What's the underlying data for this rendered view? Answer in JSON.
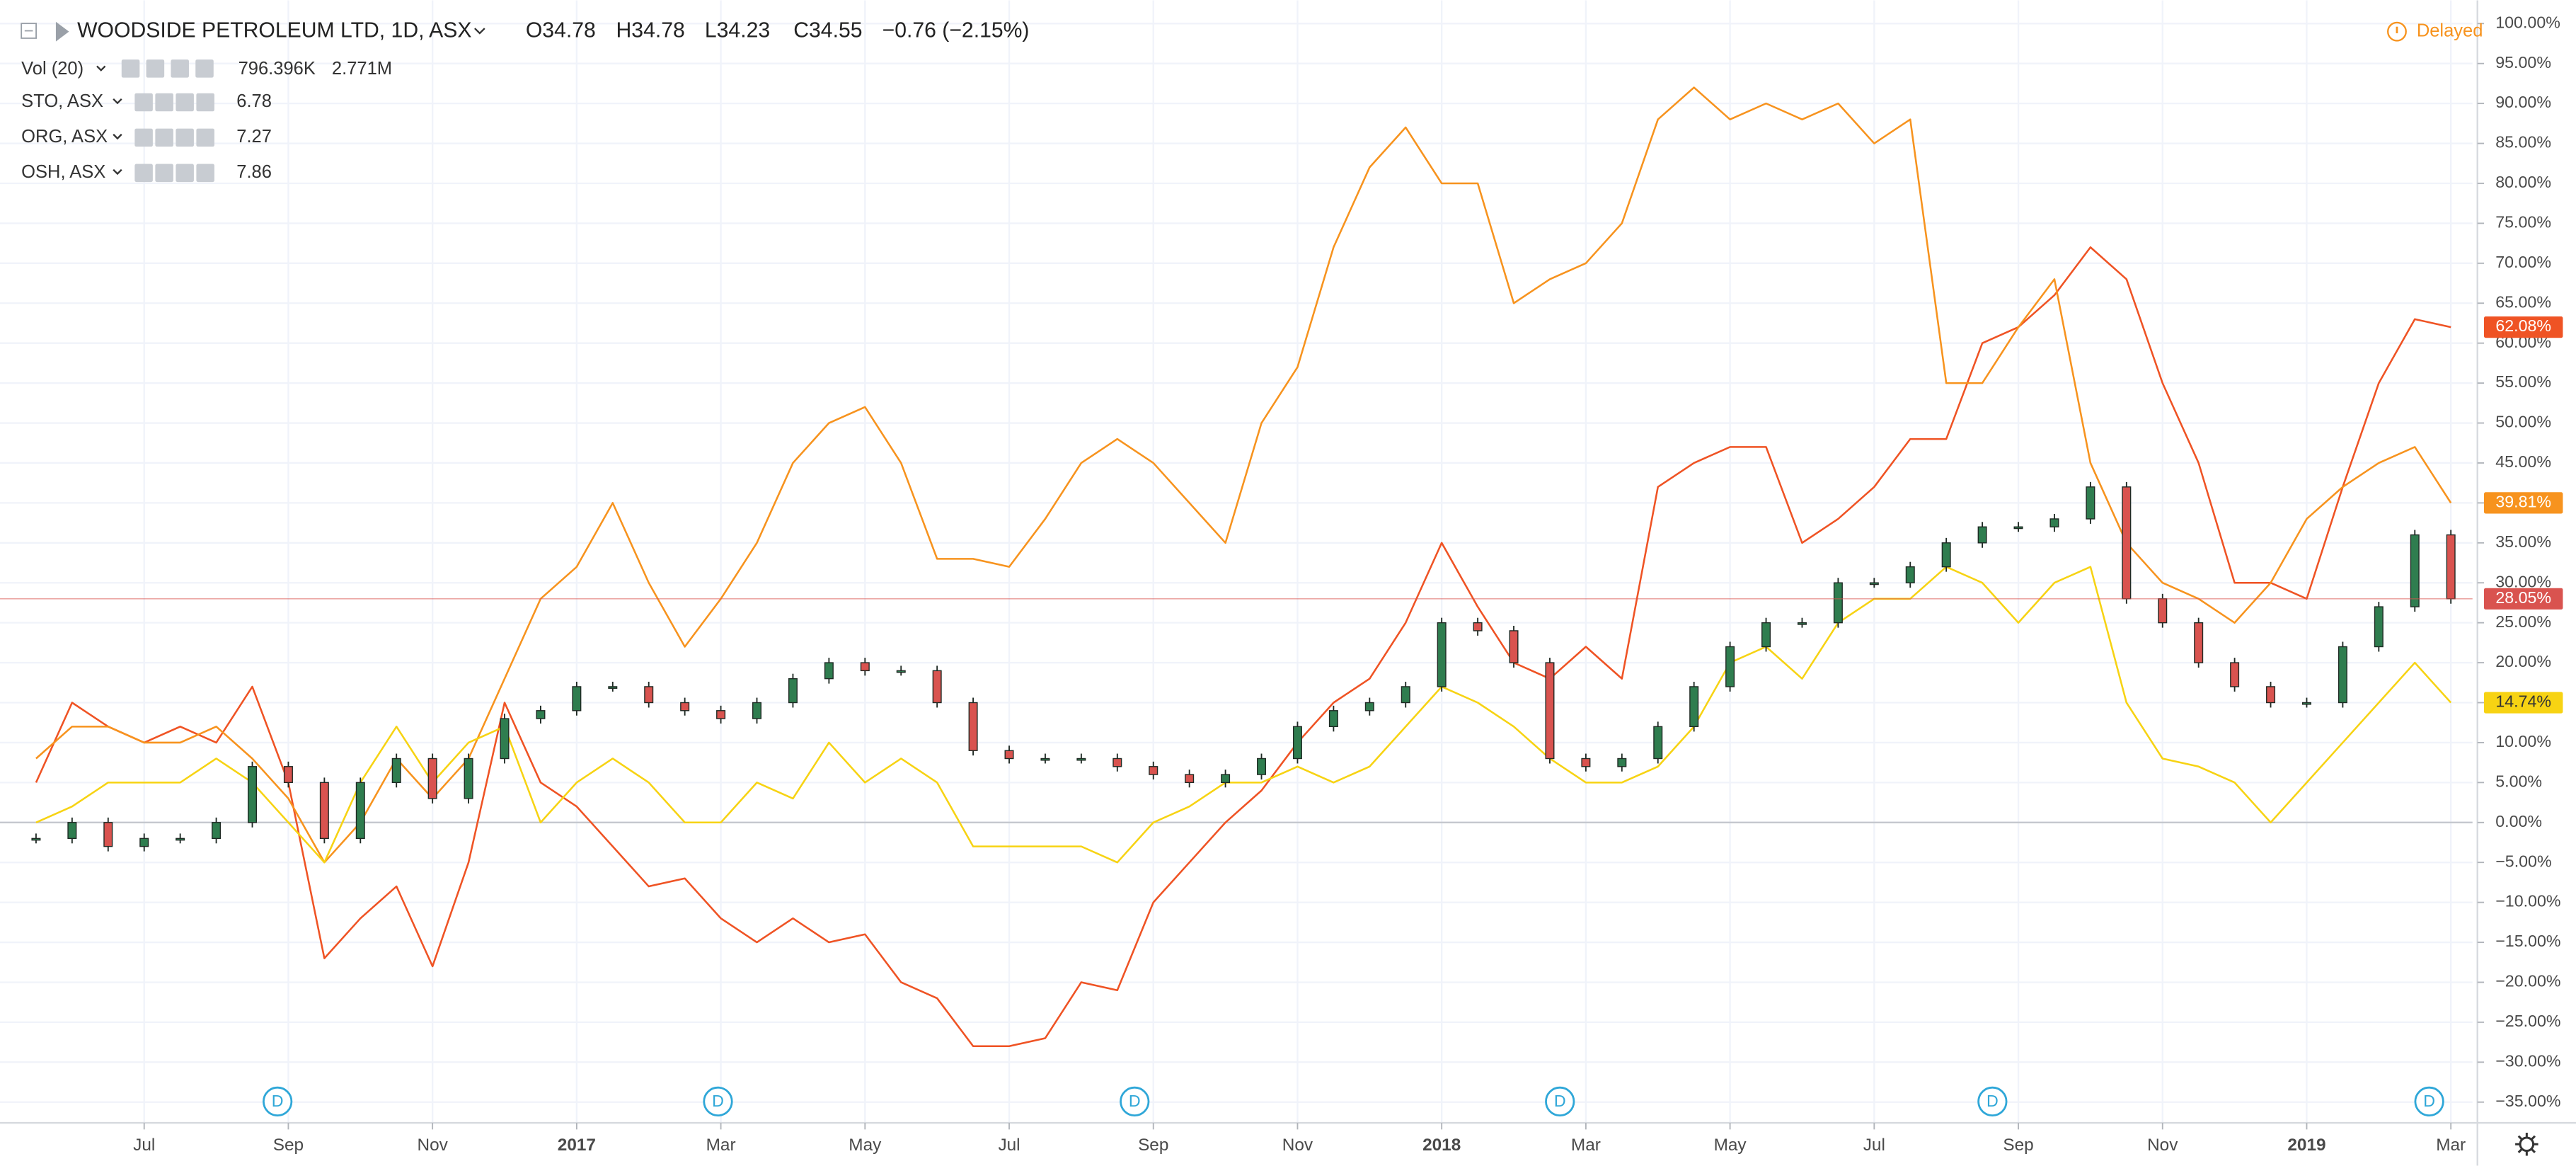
{
  "chart_data": {
    "type": "line",
    "title": "WOODSIDE PETROLEUM LTD, 1D, ASX",
    "ohlc": [
      "O34.78",
      "H34.78",
      "L34.23",
      "C34.55"
    ],
    "change": "−0.76 (−2.15%)",
    "status": "Delayed",
    "volume_legend": {
      "name": "Vol (20)",
      "values": [
        "796.396K",
        "2.771M"
      ]
    },
    "xlim": [
      4,
      38.3
    ],
    "ylim": [
      -37.6,
      102.9
    ],
    "baseline": 0,
    "grid": true,
    "up_color": "#2f7d4f",
    "down_color": "#d9534f",
    "xticks": [
      {
        "value": 6,
        "label": "Jul"
      },
      {
        "value": 8,
        "label": "Sep"
      },
      {
        "value": 10,
        "label": "Nov"
      },
      {
        "value": 12,
        "label": "2017"
      },
      {
        "value": 14,
        "label": "Mar"
      },
      {
        "value": 16,
        "label": "May"
      },
      {
        "value": 18,
        "label": "Jul"
      },
      {
        "value": 20,
        "label": "Sep"
      },
      {
        "value": 22,
        "label": "Nov"
      },
      {
        "value": 24,
        "label": "2018"
      },
      {
        "value": 26,
        "label": "Mar"
      },
      {
        "value": 28,
        "label": "May"
      },
      {
        "value": 30,
        "label": "Jul"
      },
      {
        "value": 32,
        "label": "Sep"
      },
      {
        "value": 34,
        "label": "Nov"
      },
      {
        "value": 36,
        "label": "2019"
      },
      {
        "value": 38,
        "label": "Mar"
      }
    ],
    "yticks": [
      {
        "value": 100,
        "label": "100.00%"
      },
      {
        "value": 95,
        "label": "95.00%"
      },
      {
        "value": 90,
        "label": "90.00%"
      },
      {
        "value": 85,
        "label": "85.00%"
      },
      {
        "value": 80,
        "label": "80.00%"
      },
      {
        "value": 75,
        "label": "75.00%"
      },
      {
        "value": 70,
        "label": "70.00%"
      },
      {
        "value": 65,
        "label": "65.00%"
      },
      {
        "value": 60,
        "label": "60.00%"
      },
      {
        "value": 55,
        "label": "55.00%"
      },
      {
        "value": 50,
        "label": "50.00%"
      },
      {
        "value": 45,
        "label": "45.00%"
      },
      {
        "value": 40,
        "label": "40.00%"
      },
      {
        "value": 35,
        "label": "35.00%"
      },
      {
        "value": 30,
        "label": "30.00%"
      },
      {
        "value": 25,
        "label": "25.00%"
      },
      {
        "value": 20,
        "label": "20.00%"
      },
      {
        "value": 15,
        "label": "15.00%"
      },
      {
        "value": 10,
        "label": "10.00%"
      },
      {
        "value": 5,
        "label": "5.00%"
      },
      {
        "value": 0,
        "label": "0.00%"
      },
      {
        "value": -5,
        "label": "−5.00%"
      },
      {
        "value": -10,
        "label": "−10.00%"
      },
      {
        "value": -15,
        "label": "−15.00%"
      },
      {
        "value": -20,
        "label": "−20.00%"
      },
      {
        "value": -25,
        "label": "−25.00%"
      },
      {
        "value": -30,
        "label": "−30.00%"
      },
      {
        "value": -35,
        "label": "−35.00%"
      }
    ],
    "x": [
      4.5,
      5,
      5.5,
      6,
      6.5,
      7,
      7.5,
      8,
      8.5,
      9,
      9.5,
      10,
      10.5,
      11,
      11.5,
      12,
      12.5,
      13,
      13.5,
      14,
      14.5,
      15,
      15.5,
      16,
      16.5,
      17,
      17.5,
      18,
      18.5,
      19,
      19.5,
      20,
      20.5,
      21,
      21.5,
      22,
      22.5,
      23,
      23.5,
      24,
      24.5,
      25,
      25.5,
      26,
      26.5,
      27,
      27.5,
      28,
      28.5,
      29,
      29.5,
      30,
      30.5,
      31,
      31.5,
      32,
      32.5,
      33,
      33.5,
      34,
      34.5,
      35,
      35.5,
      36,
      36.5,
      37,
      37.5,
      38
    ],
    "series": [
      {
        "name": "STO, ASX",
        "legend_value": "6.78",
        "color": "#ef5324",
        "last_label": "62.08%",
        "values": [
          5,
          15,
          12,
          10,
          12,
          10,
          17,
          5,
          -17,
          -12,
          -8,
          -18,
          -5,
          15,
          5,
          2,
          -3,
          -8,
          -7,
          -12,
          -15,
          -12,
          -15,
          -14,
          -20,
          -22,
          -28,
          -28,
          -27,
          -20,
          -21,
          -10,
          -5,
          0,
          4,
          10,
          15,
          18,
          25,
          35,
          27,
          20,
          18,
          22,
          18,
          42,
          45,
          47,
          47,
          35,
          38,
          42,
          48,
          48,
          60,
          62,
          66,
          72,
          68,
          55,
          45,
          30,
          30,
          28,
          42,
          55,
          63,
          62
        ]
      },
      {
        "name": "ORG, ASX",
        "legend_value": "7.27",
        "color": "#f7931e",
        "last_label": "39.81%",
        "values": [
          8,
          12,
          12,
          10,
          10,
          12,
          8,
          3,
          -5,
          0,
          8,
          3,
          8,
          18,
          28,
          32,
          40,
          30,
          22,
          28,
          35,
          45,
          50,
          52,
          45,
          33,
          33,
          32,
          38,
          45,
          48,
          45,
          40,
          35,
          50,
          57,
          72,
          82,
          87,
          80,
          80,
          65,
          68,
          70,
          75,
          88,
          92,
          88,
          90,
          88,
          90,
          85,
          88,
          55,
          55,
          62,
          68,
          45,
          35,
          30,
          28,
          25,
          30,
          38,
          42,
          45,
          47,
          40
        ]
      },
      {
        "name": "OSH, ASX",
        "legend_value": "7.86",
        "color": "#f7d313",
        "last_label": "14.74%",
        "values": [
          0,
          2,
          5,
          5,
          5,
          8,
          5,
          0,
          -5,
          5,
          12,
          5,
          10,
          12,
          0,
          5,
          8,
          5,
          0,
          0,
          5,
          3,
          10,
          5,
          8,
          5,
          -3,
          -3,
          -3,
          -3,
          -5,
          0,
          2,
          5,
          5,
          7,
          5,
          7,
          12,
          17,
          15,
          12,
          8,
          5,
          5,
          7,
          12,
          20,
          22,
          18,
          25,
          28,
          28,
          32,
          30,
          25,
          30,
          32,
          15,
          8,
          7,
          5,
          0,
          5,
          10,
          15,
          20,
          15
        ]
      },
      {
        "name": "WOODSIDE PETROLEUM LTD",
        "style": "candlestick",
        "color": "#2f7d4f",
        "last_label": "28.05%",
        "values": [
          -2,
          0,
          -3,
          -2,
          -2,
          0,
          7,
          5,
          -2,
          5,
          8,
          3,
          8,
          13,
          14,
          17,
          17,
          15,
          14,
          13,
          15,
          18,
          20,
          19,
          19,
          15,
          9,
          8,
          8,
          8,
          7,
          6,
          5,
          6,
          8,
          12,
          14,
          15,
          17,
          25,
          24,
          20,
          8,
          7,
          8,
          12,
          17,
          22,
          25,
          25,
          30,
          30,
          32,
          35,
          37,
          37,
          38,
          42,
          28,
          25,
          20,
          17,
          15,
          15,
          22,
          27,
          36,
          28
        ]
      }
    ],
    "dividends": [
      {
        "x": 7.85,
        "label": "D"
      },
      {
        "x": 13.96,
        "label": "D"
      },
      {
        "x": 19.74,
        "label": "D"
      },
      {
        "x": 25.64,
        "label": "D"
      },
      {
        "x": 31.64,
        "label": "D"
      },
      {
        "x": 37.7,
        "label": "D"
      }
    ]
  }
}
